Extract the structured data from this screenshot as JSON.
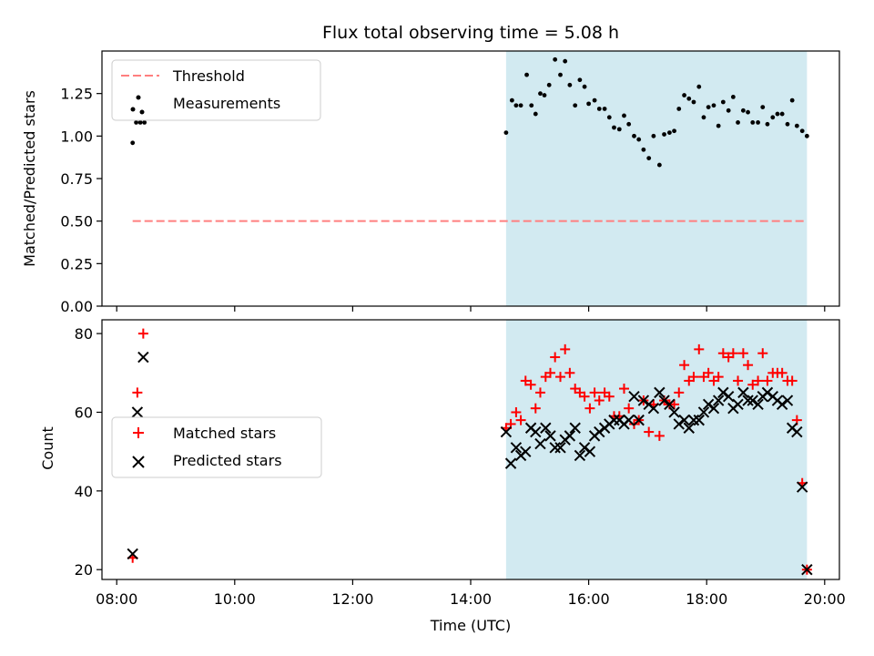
{
  "chart_data": [
    {
      "type": "scatter",
      "title": "Flux total observing time = 5.08 h",
      "xlabel": "",
      "ylabel": "Matched/Predicted stars",
      "xlim_hours": [
        7.75,
        20.25
      ],
      "ylim": [
        0,
        1.5
      ],
      "yticks": [
        0.0,
        0.25,
        0.5,
        0.75,
        1.0,
        1.25
      ],
      "ytick_labels": [
        "0.00",
        "0.25",
        "0.50",
        "0.75",
        "1.00",
        "1.25"
      ],
      "shaded_span_hours": [
        14.6,
        19.7
      ],
      "shade_color": "#add8e6",
      "threshold": {
        "name": "Threshold",
        "value": 0.5,
        "x_range_hours": [
          8.27,
          19.7
        ],
        "color": "#ff7f7f"
      },
      "legend": {
        "position": "top-left",
        "entries": [
          "Threshold",
          "Measurements"
        ]
      },
      "series": [
        {
          "name": "Measurements",
          "color": "#000000",
          "marker": "dot",
          "points": [
            [
              8.27,
              0.96
            ],
            [
              8.33,
              1.08
            ],
            [
              8.4,
              1.08
            ],
            [
              8.47,
              1.08
            ],
            [
              14.6,
              1.02
            ],
            [
              14.7,
              1.21
            ],
            [
              14.77,
              1.18
            ],
            [
              14.85,
              1.18
            ],
            [
              14.95,
              1.36
            ],
            [
              15.03,
              1.18
            ],
            [
              15.1,
              1.13
            ],
            [
              15.18,
              1.25
            ],
            [
              15.25,
              1.24
            ],
            [
              15.33,
              1.3
            ],
            [
              15.43,
              1.45
            ],
            [
              15.52,
              1.36
            ],
            [
              15.6,
              1.44
            ],
            [
              15.68,
              1.3
            ],
            [
              15.77,
              1.18
            ],
            [
              15.85,
              1.33
            ],
            [
              15.93,
              1.29
            ],
            [
              16.0,
              1.19
            ],
            [
              16.1,
              1.21
            ],
            [
              16.18,
              1.16
            ],
            [
              16.27,
              1.16
            ],
            [
              16.35,
              1.11
            ],
            [
              16.43,
              1.05
            ],
            [
              16.52,
              1.04
            ],
            [
              16.6,
              1.12
            ],
            [
              16.68,
              1.07
            ],
            [
              16.77,
              1.0
            ],
            [
              16.85,
              0.98
            ],
            [
              16.93,
              0.92
            ],
            [
              17.02,
              0.87
            ],
            [
              17.1,
              1.0
            ],
            [
              17.2,
              0.83
            ],
            [
              17.28,
              1.01
            ],
            [
              17.37,
              1.02
            ],
            [
              17.45,
              1.03
            ],
            [
              17.53,
              1.16
            ],
            [
              17.62,
              1.24
            ],
            [
              17.7,
              1.22
            ],
            [
              17.78,
              1.2
            ],
            [
              17.87,
              1.29
            ],
            [
              17.95,
              1.11
            ],
            [
              18.03,
              1.17
            ],
            [
              18.12,
              1.18
            ],
            [
              18.2,
              1.06
            ],
            [
              18.28,
              1.2
            ],
            [
              18.37,
              1.15
            ],
            [
              18.45,
              1.23
            ],
            [
              18.53,
              1.08
            ],
            [
              18.62,
              1.15
            ],
            [
              18.7,
              1.14
            ],
            [
              18.78,
              1.08
            ],
            [
              18.87,
              1.08
            ],
            [
              18.95,
              1.17
            ],
            [
              19.03,
              1.07
            ],
            [
              19.12,
              1.11
            ],
            [
              19.2,
              1.13
            ],
            [
              19.28,
              1.13
            ],
            [
              19.37,
              1.07
            ],
            [
              19.45,
              1.21
            ],
            [
              19.53,
              1.06
            ],
            [
              19.62,
              1.03
            ],
            [
              19.7,
              1.0
            ]
          ]
        }
      ]
    },
    {
      "type": "scatter",
      "title": "",
      "xlabel": "Time (UTC)",
      "ylabel": "Count",
      "xlim_hours": [
        7.75,
        20.25
      ],
      "ylim": [
        17.5,
        83.5
      ],
      "yticks": [
        20,
        40,
        60,
        80
      ],
      "ytick_labels": [
        "20",
        "40",
        "60",
        "80"
      ],
      "xticks_hours": [
        8,
        10,
        12,
        14,
        16,
        18,
        20
      ],
      "xtick_labels": [
        "08:00",
        "10:00",
        "12:00",
        "14:00",
        "16:00",
        "18:00",
        "20:00"
      ],
      "shaded_span_hours": [
        14.6,
        19.7
      ],
      "shade_color": "#add8e6",
      "legend": {
        "position": "center-left",
        "entries": [
          "Matched stars",
          "Predicted stars"
        ]
      },
      "series": [
        {
          "name": "Matched stars",
          "color": "#ff0000",
          "marker": "plus",
          "points": [
            [
              8.27,
              23
            ],
            [
              8.35,
              65
            ],
            [
              8.45,
              80
            ],
            [
              14.6,
              56
            ],
            [
              14.68,
              57
            ],
            [
              14.77,
              60
            ],
            [
              14.85,
              58
            ],
            [
              14.93,
              68
            ],
            [
              15.02,
              67
            ],
            [
              15.1,
              61
            ],
            [
              15.18,
              65
            ],
            [
              15.27,
              69
            ],
            [
              15.35,
              70
            ],
            [
              15.43,
              74
            ],
            [
              15.52,
              69
            ],
            [
              15.6,
              76
            ],
            [
              15.68,
              70
            ],
            [
              15.77,
              66
            ],
            [
              15.85,
              65
            ],
            [
              15.93,
              64
            ],
            [
              16.02,
              61
            ],
            [
              16.1,
              65
            ],
            [
              16.18,
              63
            ],
            [
              16.27,
              65
            ],
            [
              16.35,
              64
            ],
            [
              16.43,
              59
            ],
            [
              16.52,
              59
            ],
            [
              16.6,
              66
            ],
            [
              16.68,
              61
            ],
            [
              16.77,
              57
            ],
            [
              16.85,
              58
            ],
            [
              16.93,
              63
            ],
            [
              17.02,
              55
            ],
            [
              17.1,
              62
            ],
            [
              17.2,
              54
            ],
            [
              17.28,
              63
            ],
            [
              17.37,
              62
            ],
            [
              17.45,
              62
            ],
            [
              17.53,
              65
            ],
            [
              17.62,
              72
            ],
            [
              17.7,
              68
            ],
            [
              17.78,
              69
            ],
            [
              17.87,
              76
            ],
            [
              17.95,
              69
            ],
            [
              18.03,
              70
            ],
            [
              18.12,
              68
            ],
            [
              18.2,
              69
            ],
            [
              18.28,
              75
            ],
            [
              18.37,
              74
            ],
            [
              18.45,
              75
            ],
            [
              18.53,
              68
            ],
            [
              18.62,
              75
            ],
            [
              18.7,
              72
            ],
            [
              18.78,
              67
            ],
            [
              18.87,
              68
            ],
            [
              18.95,
              75
            ],
            [
              19.03,
              68
            ],
            [
              19.12,
              70
            ],
            [
              19.2,
              70
            ],
            [
              19.28,
              70
            ],
            [
              19.37,
              68
            ],
            [
              19.45,
              68
            ],
            [
              19.53,
              58
            ],
            [
              19.62,
              42
            ],
            [
              19.7,
              20
            ]
          ]
        },
        {
          "name": "Predicted stars",
          "color": "#000000",
          "marker": "x",
          "points": [
            [
              8.27,
              24
            ],
            [
              8.35,
              60
            ],
            [
              8.45,
              74
            ],
            [
              14.6,
              55
            ],
            [
              14.68,
              47
            ],
            [
              14.77,
              51
            ],
            [
              14.85,
              49
            ],
            [
              14.93,
              50
            ],
            [
              15.02,
              56
            ],
            [
              15.1,
              55
            ],
            [
              15.18,
              52
            ],
            [
              15.27,
              56
            ],
            [
              15.35,
              54
            ],
            [
              15.43,
              51
            ],
            [
              15.52,
              51
            ],
            [
              15.6,
              53
            ],
            [
              15.68,
              54
            ],
            [
              15.77,
              56
            ],
            [
              15.85,
              49
            ],
            [
              15.93,
              51
            ],
            [
              16.02,
              50
            ],
            [
              16.1,
              54
            ],
            [
              16.18,
              55
            ],
            [
              16.27,
              56
            ],
            [
              16.35,
              57
            ],
            [
              16.43,
              58
            ],
            [
              16.52,
              58
            ],
            [
              16.6,
              57
            ],
            [
              16.68,
              58
            ],
            [
              16.77,
              64
            ],
            [
              16.85,
              58
            ],
            [
              16.93,
              63
            ],
            [
              17.02,
              62
            ],
            [
              17.1,
              61
            ],
            [
              17.2,
              65
            ],
            [
              17.28,
              63
            ],
            [
              17.37,
              62
            ],
            [
              17.45,
              60
            ],
            [
              17.53,
              57
            ],
            [
              17.62,
              58
            ],
            [
              17.7,
              56
            ],
            [
              17.78,
              58
            ],
            [
              17.87,
              58
            ],
            [
              17.95,
              60
            ],
            [
              18.03,
              62
            ],
            [
              18.12,
              61
            ],
            [
              18.2,
              63
            ],
            [
              18.28,
              65
            ],
            [
              18.37,
              64
            ],
            [
              18.45,
              61
            ],
            [
              18.53,
              62
            ],
            [
              18.62,
              65
            ],
            [
              18.7,
              63
            ],
            [
              18.78,
              63
            ],
            [
              18.87,
              62
            ],
            [
              18.95,
              64
            ],
            [
              19.03,
              65
            ],
            [
              19.12,
              64
            ],
            [
              19.2,
              63
            ],
            [
              19.28,
              62
            ],
            [
              19.37,
              63
            ],
            [
              19.45,
              56
            ],
            [
              19.53,
              55
            ],
            [
              19.62,
              41
            ],
            [
              19.7,
              20
            ]
          ]
        }
      ]
    }
  ]
}
